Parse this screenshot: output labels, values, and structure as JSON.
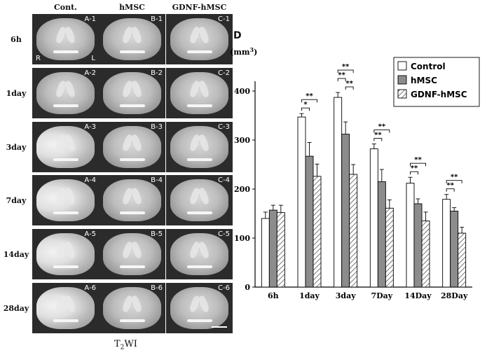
{
  "mri": {
    "columns": [
      "Cont.",
      "hMSC",
      "GDNF-hMSC"
    ],
    "rows": [
      "6h",
      "1day",
      "3day",
      "7day",
      "14day",
      "28day"
    ],
    "codes": [
      [
        "A-1",
        "B-1",
        "C-1"
      ],
      [
        "A-2",
        "B-2",
        "C-2"
      ],
      [
        "A-3",
        "B-3",
        "C-3"
      ],
      [
        "A-4",
        "B-4",
        "C-4"
      ],
      [
        "A-5",
        "B-5",
        "C-5"
      ],
      [
        "A-6",
        "B-6",
        "C-6"
      ]
    ],
    "side_right": "R",
    "side_left": "L",
    "caption_main": "T",
    "caption_sub": "2",
    "caption_rest": "WI"
  },
  "panel_letter": "D",
  "colors": {
    "control_fill": "#ffffff",
    "hmsc_fill": "#8c8c8c",
    "gdnf_hatch": "#555555",
    "axis": "#000000"
  },
  "chart_data": {
    "type": "bar",
    "ylabel": "(mm",
    "ylabel_sup": "3",
    "ylabel_close": ")",
    "ylim": [
      0,
      400
    ],
    "yticks": [
      0,
      100,
      200,
      300,
      400
    ],
    "categories": [
      "6h",
      "1day",
      "3day",
      "7Day",
      "14Day",
      "28Day"
    ],
    "series": [
      {
        "name": "Control",
        "values": [
          140,
          347,
          387,
          282,
          212,
          179
        ],
        "errors": [
          13,
          7,
          10,
          10,
          12,
          10
        ]
      },
      {
        "name": "hMSC",
        "values": [
          157,
          267,
          312,
          215,
          170,
          155
        ],
        "errors": [
          10,
          28,
          25,
          25,
          10,
          7
        ]
      },
      {
        "name": "GDNF-hMSC",
        "values": [
          152,
          226,
          230,
          161,
          135,
          110
        ],
        "errors": [
          15,
          25,
          20,
          17,
          18,
          12
        ]
      }
    ],
    "legend_position": "top-right",
    "significance": [
      {
        "category": 1,
        "pairs": [
          {
            "label": "**",
            "from": 0,
            "to": 2
          },
          {
            "label": "*",
            "from": 0,
            "to": 1
          }
        ]
      },
      {
        "category": 2,
        "pairs": [
          {
            "label": "**",
            "from": 0,
            "to": 2
          },
          {
            "label": "**",
            "from": 0,
            "to": 1
          },
          {
            "label": "**",
            "from": 1,
            "to": 2
          }
        ]
      },
      {
        "category": 3,
        "pairs": [
          {
            "label": "**",
            "from": 0,
            "to": 2
          },
          {
            "label": "**",
            "from": 0,
            "to": 1
          }
        ]
      },
      {
        "category": 4,
        "pairs": [
          {
            "label": "**",
            "from": 0,
            "to": 2
          },
          {
            "label": "**",
            "from": 0,
            "to": 1
          }
        ]
      },
      {
        "category": 5,
        "pairs": [
          {
            "label": "**",
            "from": 0,
            "to": 2
          },
          {
            "label": "**",
            "from": 0,
            "to": 1
          }
        ]
      }
    ]
  }
}
